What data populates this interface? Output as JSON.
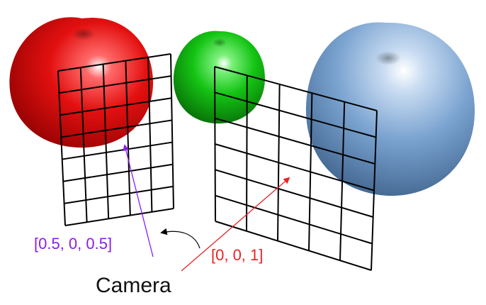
{
  "labels": {
    "left_direction": "[0.5, 0, 0.5]",
    "right_direction": "[0, 0, 1]",
    "camera": "Camera"
  },
  "colors": {
    "left_direction": "#8b1ee8",
    "right_direction": "#e62424",
    "camera": "#111111",
    "red_apple": "#e01010",
    "green_apple": "#12c412",
    "blue_apple": "#6f9ac8",
    "grid": "#000000"
  },
  "objects": {
    "apples": [
      "red-apple",
      "green-apple",
      "blue-apple"
    ],
    "grids": [
      "left-grid",
      "right-grid"
    ],
    "arrows": [
      "left-ray-arrow",
      "right-ray-arrow",
      "rotation-arrow"
    ]
  }
}
